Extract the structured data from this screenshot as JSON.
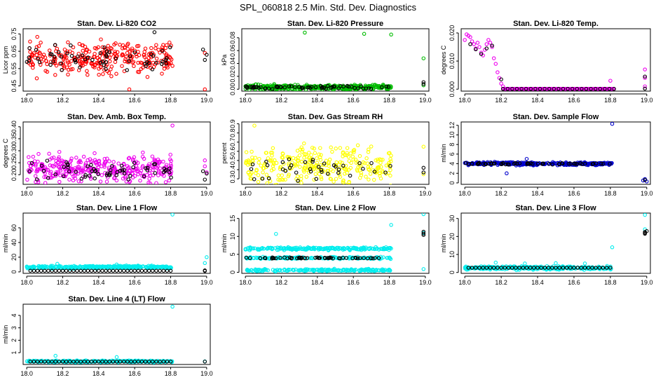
{
  "page": {
    "title": "SPL_060818  2.5 Min. Std. Dev. Diagnostics"
  },
  "chart_data": [
    {
      "id": "co2",
      "type": "scatter",
      "title": "Stan. Dev. Li-820 CO2",
      "xlabel": "",
      "ylabel": "Licor ppm",
      "xlim": [
        17.98,
        19.02
      ],
      "ylim": [
        0.42,
        0.78
      ],
      "xticks": [
        "18.0",
        "18.2",
        "18.4",
        "18.6",
        "18.8",
        "19.0"
      ],
      "yticks": [
        "0.45",
        "0.55",
        "0.65",
        "0.75"
      ],
      "series": [
        {
          "name": "main",
          "color": "#ff0000",
          "gen": "noise",
          "x0": 18.0,
          "x1": 18.81,
          "n": 300,
          "base": 0.61,
          "amp": 0.075,
          "seed": 11,
          "extra": [
            [
              18.99,
              0.43
            ],
            [
              18.57,
              0.43
            ],
            [
              18.99,
              0.64
            ]
          ]
        },
        {
          "name": "avg",
          "color": "#000000",
          "gen": "noise",
          "x0": 18.0,
          "x1": 18.81,
          "n": 60,
          "base": 0.61,
          "amp": 0.06,
          "seed": 12,
          "extra": [
            [
              18.98,
              0.66
            ],
            [
              18.99,
              0.6
            ],
            [
              19.0,
              0.63
            ],
            [
              18.71,
              0.76
            ]
          ]
        }
      ]
    },
    {
      "id": "pressure",
      "type": "scatter",
      "title": "Stan. Dev. Li-820 Pressure",
      "xlabel": "",
      "ylabel": "kPa",
      "xlim": [
        17.98,
        19.02
      ],
      "ylim": [
        -0.003,
        0.094
      ],
      "xticks": [
        "18.0",
        "18.2",
        "18.4",
        "18.6",
        "18.8",
        "19.0"
      ],
      "yticks": [
        "0.00",
        "0.02",
        "0.04",
        "0.06",
        "0.08"
      ],
      "series": [
        {
          "name": "main",
          "color": "#00bb00",
          "gen": "noise",
          "x0": 18.0,
          "x1": 18.81,
          "n": 380,
          "base": 0.003,
          "amp": 0.003,
          "seed": 21,
          "extra": [
            [
              18.33,
              0.088
            ],
            [
              18.66,
              0.086
            ],
            [
              18.81,
              0.085
            ],
            [
              18.99,
              0.048
            ],
            [
              18.99,
              0.006
            ],
            [
              18.16,
              0.008
            ]
          ]
        },
        {
          "name": "avg",
          "color": "#000000",
          "gen": "noise",
          "x0": 18.0,
          "x1": 18.81,
          "n": 60,
          "base": 0.003,
          "amp": 0.002,
          "seed": 22,
          "extra": [
            [
              18.99,
              0.008
            ],
            [
              18.99,
              0.011
            ]
          ]
        }
      ]
    },
    {
      "id": "temp",
      "type": "scatter",
      "title": "Stan. Dev. Li-820 Temp.",
      "xlabel": "",
      "ylabel": "degrees C",
      "xlim": [
        17.98,
        19.02
      ],
      "ylim": [
        -0.0007,
        0.0215
      ],
      "xticks": [
        "18.0",
        "18.2",
        "18.4",
        "18.6",
        "18.8",
        "19.0"
      ],
      "yticks": [
        "0.000",
        "0.010",
        "0.020"
      ],
      "series": [
        {
          "name": "main",
          "color": "#ee00ee",
          "gen": "pts",
          "points": [
            [
              18.0,
              0.0175
            ],
            [
              18.01,
              0.0195
            ],
            [
              18.02,
              0.019
            ],
            [
              18.03,
              0.0185
            ],
            [
              18.04,
              0.017
            ],
            [
              18.05,
              0.016
            ],
            [
              18.06,
              0.0145
            ],
            [
              18.07,
              0.0165
            ],
            [
              18.08,
              0.015
            ],
            [
              18.09,
              0.013
            ],
            [
              18.1,
              0.012
            ],
            [
              18.11,
              0.014
            ],
            [
              18.12,
              0.016
            ],
            [
              18.13,
              0.0175
            ],
            [
              18.14,
              0.0165
            ],
            [
              18.15,
              0.015
            ],
            [
              18.16,
              0.011
            ],
            [
              18.17,
              0.009
            ],
            [
              18.18,
              0.006
            ],
            [
              18.19,
              0.004
            ],
            [
              18.2,
              0.002
            ],
            [
              18.21,
              0.001
            ],
            [
              18.8,
              0.003
            ],
            [
              18.99,
              0.007
            ],
            [
              18.99,
              0.004
            ],
            [
              18.99,
              0.001
            ]
          ]
        },
        {
          "name": "floor",
          "color": "#ee00ee",
          "gen": "flat",
          "x0": 18.21,
          "x1": 18.82,
          "n": 110,
          "y": 0.0001
        },
        {
          "name": "avg",
          "color": "#000000",
          "gen": "pts",
          "points": [
            [
              18.03,
              0.016
            ],
            [
              18.06,
              0.0142
            ],
            [
              18.09,
              0.0125
            ],
            [
              18.12,
              0.0145
            ],
            [
              18.15,
              0.0155
            ],
            [
              18.2,
              0.0035
            ],
            [
              18.99,
              0.0045
            ],
            [
              18.99,
              0.0002
            ]
          ]
        },
        {
          "name": "avg-floor",
          "color": "#000000",
          "gen": "flat",
          "x0": 18.21,
          "x1": 18.82,
          "n": 25,
          "y": 0.0001
        }
      ]
    },
    {
      "id": "ambbox",
      "type": "scatter",
      "title": "Stan. Dev. Amb. Box Temp.",
      "xlabel": "",
      "ylabel": "degrees C",
      "xlim": [
        17.98,
        19.02
      ],
      "ylim": [
        0.16,
        0.42
      ],
      "xticks": [
        "18.0",
        "18.2",
        "18.4",
        "18.6",
        "18.8",
        "19.0"
      ],
      "yticks": [
        "0.20",
        "0.25",
        "0.30",
        "0.35",
        "0.40"
      ],
      "series": [
        {
          "name": "main",
          "color": "#ee00ee",
          "gen": "noise",
          "x0": 18.0,
          "x1": 18.81,
          "n": 330,
          "base": 0.225,
          "amp": 0.045,
          "seed": 41,
          "extra": [
            [
              18.81,
              0.405
            ],
            [
              18.99,
              0.26
            ],
            [
              18.99,
              0.235
            ],
            [
              19.0,
              0.21
            ]
          ]
        },
        {
          "name": "avg",
          "color": "#000000",
          "gen": "noise",
          "x0": 18.0,
          "x1": 18.81,
          "n": 60,
          "base": 0.215,
          "amp": 0.03,
          "seed": 42,
          "extra": [
            [
              18.98,
              0.215
            ],
            [
              18.99,
              0.18
            ],
            [
              19.0,
              0.205
            ]
          ]
        }
      ]
    },
    {
      "id": "rh",
      "type": "scatter",
      "title": "Stan. Dev. Gas Stream RH",
      "xlabel": "",
      "ylabel": "percent",
      "xlim": [
        17.98,
        19.02
      ],
      "ylim": [
        0.24,
        0.92
      ],
      "xticks": [
        "18.0",
        "18.2",
        "18.4",
        "18.6",
        "18.8",
        "19.0"
      ],
      "yticks": [
        "0.3",
        "0.4",
        "0.5",
        "0.6",
        "0.7",
        "0.8",
        "0.9"
      ],
      "series": [
        {
          "name": "main",
          "color": "#ffff00",
          "gen": "noise",
          "x0": 18.0,
          "x1": 18.81,
          "n": 300,
          "base": 0.44,
          "amp": 0.17,
          "seed": 51,
          "extra": [
            [
              18.05,
              0.88
            ],
            [
              18.99,
              0.65
            ],
            [
              18.99,
              0.35
            ]
          ]
        },
        {
          "name": "avg",
          "color": "#000000",
          "gen": "noise",
          "x0": 18.0,
          "x1": 18.81,
          "n": 40,
          "base": 0.4,
          "amp": 0.14,
          "seed": 52,
          "extra": [
            [
              18.99,
              0.42
            ],
            [
              18.99,
              0.37
            ]
          ]
        }
      ]
    },
    {
      "id": "sample",
      "type": "scatter",
      "title": "Stan. Dev. Sample Flow",
      "xlabel": "",
      "ylabel": "ml/min",
      "xlim": [
        17.98,
        19.02
      ],
      "ylim": [
        -0.3,
        12.7
      ],
      "xticks": [
        "18.0",
        "18.2",
        "18.4",
        "18.6",
        "18.8",
        "19.0"
      ],
      "yticks": [
        "0",
        "2",
        "4",
        "6",
        "8",
        "10",
        "12"
      ],
      "series": [
        {
          "name": "main",
          "color": "#0000cc",
          "gen": "noise",
          "x0": 18.0,
          "x1": 18.81,
          "n": 320,
          "base": 4.0,
          "amp": 0.25,
          "seed": 61,
          "extra": [
            [
              18.34,
              5.0
            ],
            [
              18.23,
              2.0
            ],
            [
              18.81,
              12.3
            ],
            [
              18.98,
              0.5
            ],
            [
              18.99,
              0.8
            ],
            [
              19.0,
              0.3
            ]
          ]
        },
        {
          "name": "avg",
          "color": "#000000",
          "gen": "noise",
          "x0": 18.0,
          "x1": 18.81,
          "n": 60,
          "base": 4.0,
          "amp": 0.15,
          "seed": 62,
          "extra": [
            [
              18.99,
              0.6
            ]
          ]
        }
      ]
    },
    {
      "id": "line1",
      "type": "scatter",
      "title": "Stan. Dev. Line 1 Flow",
      "xlabel": "",
      "ylabel": "ml/min",
      "xlim": [
        17.98,
        19.02
      ],
      "ylim": [
        -2,
        80
      ],
      "xticks": [
        "18.0",
        "18.2",
        "18.4",
        "18.6",
        "18.8",
        "19.0"
      ],
      "yticks": [
        "0",
        "20",
        "40",
        "60"
      ],
      "series": [
        {
          "name": "main",
          "color": "#00eeee",
          "gen": "noise",
          "x0": 18.0,
          "x1": 18.81,
          "n": 320,
          "base": 6.5,
          "amp": 1.5,
          "seed": 71,
          "extra": [
            [
              18.81,
              78
            ],
            [
              19.0,
              20
            ],
            [
              18.99,
              12
            ],
            [
              18.17,
              11
            ],
            [
              18.5,
              10
            ]
          ]
        },
        {
          "name": "avg",
          "color": "#000000",
          "gen": "flat",
          "x0": 18.02,
          "x1": 18.8,
          "n": 40,
          "y": 1.5,
          "extra": [
            [
              18.99,
              2
            ],
            [
              18.99,
              1.2
            ]
          ]
        }
      ]
    },
    {
      "id": "line2",
      "type": "scatter",
      "title": "Stan. Dev. Line 2 Flow",
      "xlabel": "",
      "ylabel": "ml/min",
      "xlim": [
        17.98,
        19.02
      ],
      "ylim": [
        -0.3,
        16.5
      ],
      "xticks": [
        "18.0",
        "18.2",
        "18.4",
        "18.6",
        "18.8",
        "19.0"
      ],
      "yticks": [
        "0",
        "5",
        "10",
        "15"
      ],
      "series": [
        {
          "name": "upper",
          "color": "#00eeee",
          "gen": "noise",
          "x0": 18.0,
          "x1": 18.81,
          "n": 200,
          "base": 6.6,
          "amp": 0.35,
          "seed": 81,
          "extra": [
            [
              18.99,
              16.2
            ],
            [
              18.81,
              13.2
            ],
            [
              18.17,
              10.7
            ],
            [
              18.99,
              11.0
            ],
            [
              18.99,
              0.9
            ]
          ]
        },
        {
          "name": "middle",
          "color": "#00eeee",
          "gen": "noise",
          "x0": 18.0,
          "x1": 18.81,
          "n": 150,
          "base": 4.0,
          "amp": 0.25,
          "seed": 82
        },
        {
          "name": "lower",
          "color": "#00eeee",
          "gen": "noise",
          "x0": 18.0,
          "x1": 18.81,
          "n": 200,
          "base": 0.6,
          "amp": 0.25,
          "seed": 83
        },
        {
          "name": "avg",
          "color": "#000000",
          "gen": "noise",
          "x0": 18.0,
          "x1": 18.81,
          "n": 55,
          "base": 4.0,
          "amp": 0.15,
          "seed": 84,
          "extra": [
            [
              18.99,
              10.8
            ],
            [
              18.99,
              11.3
            ],
            [
              18.99,
              10.4
            ]
          ]
        }
      ]
    },
    {
      "id": "line3",
      "type": "scatter",
      "title": "Stan. Dev. Line 3 Flow",
      "xlabel": "",
      "ylabel": "ml/min",
      "xlim": [
        17.98,
        19.02
      ],
      "ylim": [
        -0.5,
        33
      ],
      "xticks": [
        "18.0",
        "18.2",
        "18.4",
        "18.6",
        "18.8",
        "19.0"
      ],
      "yticks": [
        "0",
        "10",
        "20",
        "30"
      ],
      "series": [
        {
          "name": "main",
          "color": "#00eeee",
          "gen": "noise",
          "x0": 18.0,
          "x1": 18.81,
          "n": 300,
          "base": 2.5,
          "amp": 0.8,
          "seed": 91,
          "extra": [
            [
              18.99,
              32
            ],
            [
              18.99,
              24
            ],
            [
              18.81,
              14
            ],
            [
              18.17,
              5.5
            ],
            [
              18.33,
              5.0
            ],
            [
              18.5,
              5.2
            ],
            [
              18.66,
              5.0
            ]
          ]
        },
        {
          "name": "avg",
          "color": "#000000",
          "gen": "flat",
          "x0": 18.02,
          "x1": 18.8,
          "n": 40,
          "y": 2.6,
          "extra": [
            [
              18.99,
              21.5
            ],
            [
              18.99,
              22.5
            ],
            [
              19.0,
              23.0
            ],
            [
              18.99,
              22.0
            ]
          ]
        }
      ]
    },
    {
      "id": "line4",
      "type": "scatter",
      "title": "Stan. Dev. Line 4 (LT) Flow",
      "xlabel": "",
      "ylabel": "ml/min",
      "xlim": [
        17.98,
        19.02
      ],
      "ylim": [
        0.05,
        4.9
      ],
      "xticks": [
        "18.0",
        "18.2",
        "18.4",
        "18.6",
        "18.8",
        "19.0"
      ],
      "yticks": [
        "1",
        "2",
        "3",
        "4"
      ],
      "series": [
        {
          "name": "main",
          "color": "#00eeee",
          "gen": "noise",
          "x0": 18.0,
          "x1": 18.81,
          "n": 300,
          "base": 0.3,
          "amp": 0.06,
          "seed": 101,
          "extra": [
            [
              18.81,
              4.7
            ],
            [
              18.16,
              0.75
            ],
            [
              18.5,
              0.65
            ],
            [
              18.99,
              0.3
            ]
          ]
        },
        {
          "name": "avg",
          "color": "#000000",
          "gen": "flat",
          "x0": 18.02,
          "x1": 18.8,
          "n": 40,
          "y": 0.28,
          "extra": [
            [
              18.99,
              0.28
            ]
          ]
        }
      ]
    }
  ]
}
